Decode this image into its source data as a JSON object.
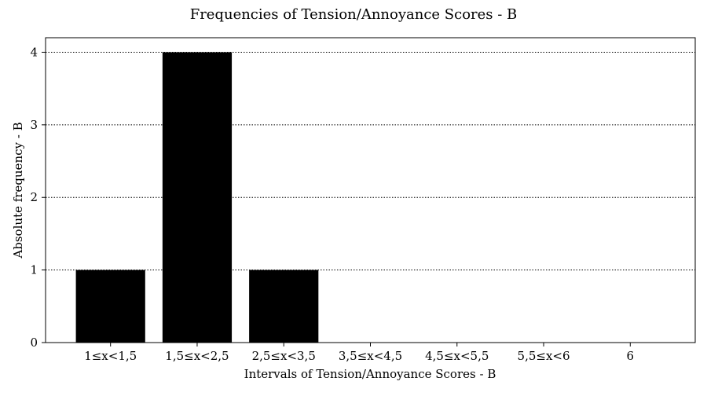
{
  "chart_data": {
    "type": "bar",
    "title": "Frequencies of Tension/Annoyance Scores - B",
    "xlabel": "Intervals of Tension/Annoyance Scores - B",
    "ylabel": "Absolute frequency - B",
    "categories": [
      "1≤x<1,5",
      "1,5≤x<2,5",
      "2,5≤x<3,5",
      "3,5≤x<4,5",
      "4,5≤x<5,5",
      "5,5≤x<6",
      "6"
    ],
    "values": [
      1,
      4,
      1,
      0,
      0,
      0,
      0
    ],
    "ylim": [
      0,
      4.2
    ],
    "yticks": [
      0,
      1,
      2,
      3,
      4
    ],
    "grid": "y-dotted",
    "bar_color": "#000000"
  }
}
